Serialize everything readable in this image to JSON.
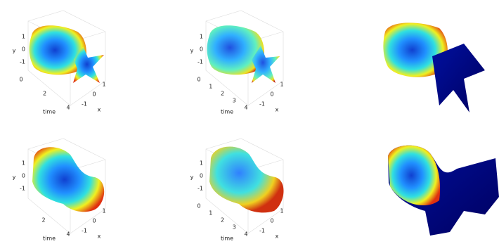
{
  "panels": [
    {
      "y_label": "y",
      "y_ticks": [
        "1",
        "0",
        "-1"
      ],
      "time_label": "time",
      "time_ticks": [
        "0",
        "2",
        "4"
      ],
      "x_label": "x",
      "x_ticks": [
        "-1",
        "0",
        "1"
      ]
    },
    {
      "y_label": "y",
      "y_ticks": [
        "1",
        "0",
        "-1"
      ],
      "time_label": "time",
      "time_ticks": [
        "0",
        "1",
        "2",
        "3",
        "4"
      ],
      "x_label": "x",
      "x_ticks": [
        "-1",
        "0",
        "1"
      ]
    },
    {
      "y_label": "y",
      "y_ticks": [
        "1",
        "0",
        "-1"
      ],
      "time_label": "time",
      "time_ticks": [
        "2",
        "4"
      ],
      "x_label": "x",
      "x_ticks": [
        "-1",
        "0",
        "1"
      ]
    },
    {
      "y_label": "y",
      "y_ticks": [
        "1",
        "0",
        "-1"
      ],
      "time_label": "time",
      "time_ticks": [
        "0",
        "1",
        "2",
        "3",
        "4"
      ],
      "x_label": "x",
      "x_ticks": [
        "-1",
        "0",
        "1"
      ]
    }
  ]
}
